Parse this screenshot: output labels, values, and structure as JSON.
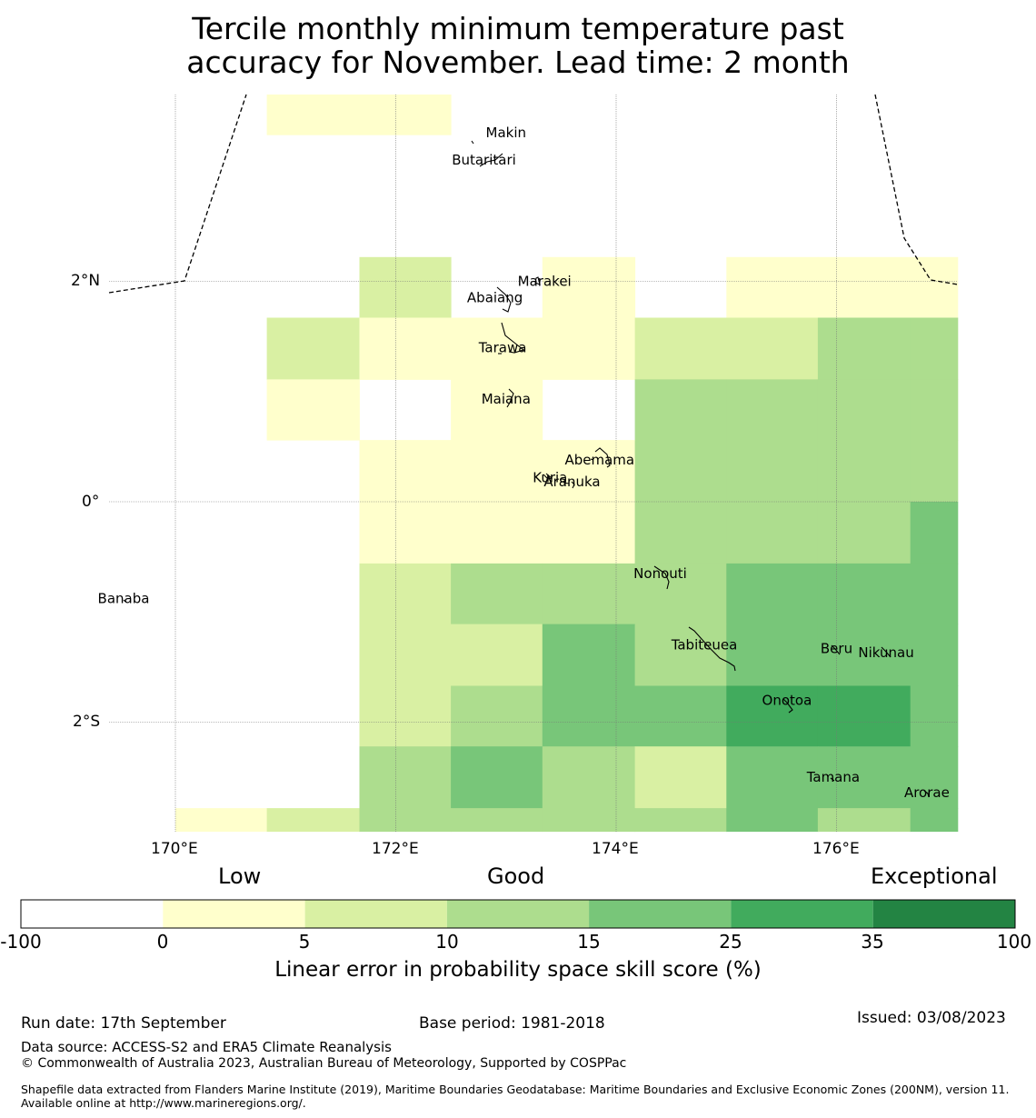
{
  "title": {
    "line1": "Tercile monthly minimum temperature past",
    "line2": "accuracy for November. Lead time: 2 month"
  },
  "map": {
    "x_ticks": [
      "170°E",
      "172°E",
      "174°E",
      "176°E"
    ],
    "y_ticks": [
      "2°N",
      "0°",
      "2°S"
    ],
    "islands": [
      {
        "name": "Makin",
        "lon": 173.0,
        "lat": 3.35
      },
      {
        "name": "Butaritari",
        "lon": 172.8,
        "lat": 3.1
      },
      {
        "name": "Marakei",
        "lon": 173.35,
        "lat": 2.0
      },
      {
        "name": "Abaiang",
        "lon": 172.9,
        "lat": 1.85
      },
      {
        "name": "Tarawa",
        "lon": 172.97,
        "lat": 1.4
      },
      {
        "name": "Maiana",
        "lon": 173.0,
        "lat": 0.93
      },
      {
        "name": "Abemama",
        "lon": 173.85,
        "lat": 0.38
      },
      {
        "name": "Kuria",
        "lon": 173.4,
        "lat": 0.22
      },
      {
        "name": "Aranuka",
        "lon": 173.6,
        "lat": 0.18
      },
      {
        "name": "Banaba",
        "lon": 169.53,
        "lat": -0.88
      },
      {
        "name": "Nonouti",
        "lon": 174.4,
        "lat": -0.65
      },
      {
        "name": "Tabiteuea",
        "lon": 174.8,
        "lat": -1.3
      },
      {
        "name": "Beru",
        "lon": 176.0,
        "lat": -1.33
      },
      {
        "name": "Nikunau",
        "lon": 176.45,
        "lat": -1.37
      },
      {
        "name": "Onotoa",
        "lon": 175.55,
        "lat": -1.8
      },
      {
        "name": "Tamana",
        "lon": 175.97,
        "lat": -2.5
      },
      {
        "name": "Arorae",
        "lon": 176.82,
        "lat": -2.64
      }
    ],
    "grid": {
      "lon_edges": [
        170.0,
        170.83,
        171.67,
        172.5,
        173.33,
        174.17,
        175.0,
        175.83,
        176.67,
        177.1
      ],
      "lat_edges": [
        3.7,
        3.33,
        2.22,
        1.67,
        1.11,
        0.56,
        0.0,
        -0.56,
        -1.11,
        -1.67,
        -2.22,
        -2.78,
        -2.99
      ],
      "values": [
        [
          null,
          2,
          2,
          null,
          null,
          null,
          null,
          null,
          null
        ],
        [
          null,
          null,
          null,
          null,
          null,
          null,
          null,
          null,
          null
        ],
        [
          null,
          null,
          7,
          null,
          2,
          null,
          2,
          2,
          2
        ],
        [
          null,
          7,
          2,
          2,
          2,
          7,
          7,
          12,
          12
        ],
        [
          null,
          2,
          null,
          2,
          null,
          12,
          12,
          12,
          12
        ],
        [
          null,
          null,
          2,
          2,
          2,
          12,
          12,
          12,
          12
        ],
        [
          null,
          null,
          2,
          2,
          2,
          12,
          12,
          12,
          20
        ],
        [
          null,
          null,
          7,
          12,
          12,
          12,
          20,
          20,
          20
        ],
        [
          null,
          null,
          7,
          7,
          20,
          12,
          20,
          20,
          20
        ],
        [
          null,
          null,
          7,
          12,
          20,
          20,
          30,
          30,
          20
        ],
        [
          null,
          null,
          12,
          20,
          12,
          7,
          20,
          20,
          20
        ],
        [
          2,
          7,
          12,
          12,
          12,
          12,
          20,
          12,
          20
        ]
      ]
    }
  },
  "colorbar": {
    "categories": [
      "Low",
      "Good",
      "Exceptional"
    ],
    "bounds": [
      "-100",
      "0",
      "5",
      "10",
      "15",
      "25",
      "35",
      "100"
    ],
    "colors": [
      "#ffffff",
      "#ffffcc",
      "#d9f0a3",
      "#addd8e",
      "#78c679",
      "#41ab5d",
      "#238443"
    ],
    "label": "Linear error in probability space skill score (%)"
  },
  "footer": {
    "run_date": "Run date: 17th September",
    "base_period": "Base period: 1981-2018",
    "issued": "Issued: 03/08/2023",
    "data_source": "Data source: ACCESS-S2 and ERA5 Climate Reanalysis",
    "copyright": "© Commonwealth of Australia 2023, Australian Bureau of Meteorology, Supported by COSPPac",
    "shapefile": "Shapefile data extracted from Flanders Marine Institute (2019), Maritime Boundaries Geodatabase: Maritime Boundaries and Exclusive Economic Zones (200NM), version 11. Available online at http://www.marineregions.org/."
  }
}
